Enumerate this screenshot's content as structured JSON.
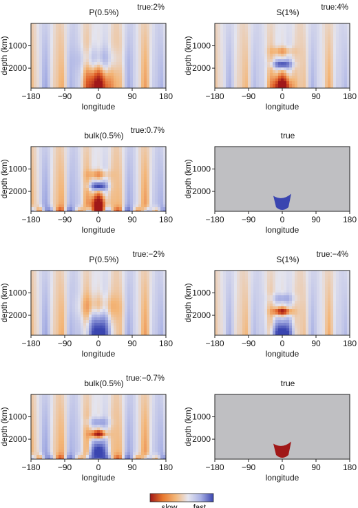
{
  "chart_data": {
    "type": "heatmap",
    "x_ticks": [
      "-180",
      "-90",
      "0",
      "90",
      "180"
    ],
    "x_range": [
      -180,
      180
    ],
    "y_ticks": [
      "1000",
      "2000"
    ],
    "y_range_km": [
      0,
      2890
    ],
    "xlabel": "longitude",
    "ylabel": "depth (km)",
    "colorbar": {
      "labels": [
        "slow",
        "fast"
      ],
      "colors": [
        "#a01818",
        "#e8782e",
        "#f3b678",
        "#e6e6f0",
        "#a8b0e4",
        "#3a45b0"
      ]
    },
    "panels": [
      {
        "title": "P(0.5%)",
        "annotation": "true:2%",
        "kind": "model",
        "sign": -1,
        "type": "P"
      },
      {
        "title": "S(1%)",
        "annotation": "true:4%",
        "kind": "model",
        "sign": -1,
        "type": "S"
      },
      {
        "title": "bulk(0.5%)",
        "annotation": "true:0.7%",
        "kind": "model",
        "sign": 1,
        "type": "bulk"
      },
      {
        "title": "true",
        "annotation": "",
        "kind": "true",
        "sign": -1,
        "type": "true"
      },
      {
        "title": "P(0.5%)",
        "annotation": "true:−2%",
        "kind": "model",
        "sign": 1,
        "type": "P"
      },
      {
        "title": "S(1%)",
        "annotation": "true:−4%",
        "kind": "model",
        "sign": 1,
        "type": "S"
      },
      {
        "title": "bulk(0.5%)",
        "annotation": "true:−0.7%",
        "kind": "model",
        "sign": -1,
        "type": "bulk"
      },
      {
        "title": "true",
        "annotation": "",
        "kind": "true",
        "sign": 1,
        "type": "true"
      }
    ]
  }
}
